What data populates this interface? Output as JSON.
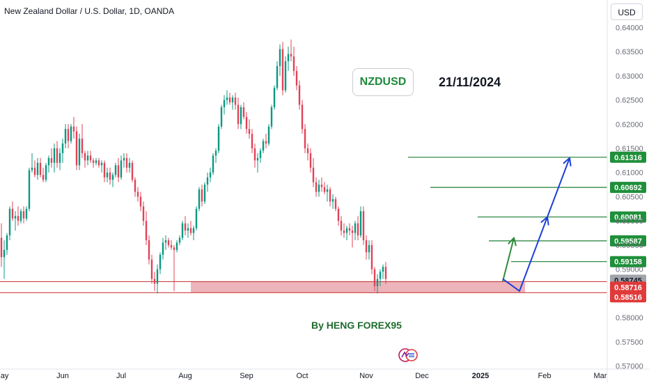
{
  "header": {
    "title": "New Zealand Dollar / U.S. Dollar, 1D, OANDA",
    "currency_button": "USD"
  },
  "annotations": {
    "symbol": "NZDUSD",
    "date": "21/11/2024",
    "author": "By HENG FOREX95"
  },
  "colors": {
    "bull": "#089981",
    "bear": "#e04257",
    "target_line": "#1e7e34",
    "zone_fill": "#e8a2aa",
    "zone_line": "#c62828",
    "blue_arrow": "#1a3fd6",
    "green_arrow": "#2e8b3a",
    "price_tag_green": "#1f8f3a",
    "price_tag_red": "#e03a3a",
    "price_tag_gray": "#a0a4ab"
  },
  "chart_data": {
    "type": "candlestick",
    "title": "New Zealand Dollar / U.S. Dollar, 1D, OANDA",
    "symbol": "NZDUSD",
    "xlabel": "",
    "ylabel": "",
    "ylim": [
      0.5685,
      0.6425
    ],
    "y_ticks": [
      "0.64000",
      "0.63500",
      "0.63000",
      "0.62500",
      "0.62000",
      "0.61500",
      "0.61000",
      "0.60500",
      "0.60000",
      "0.59500",
      "0.59000",
      "0.58500",
      "0.58000",
      "0.57500",
      "0.57000"
    ],
    "x_ticks": [
      {
        "label": "May",
        "index": 0
      },
      {
        "label": "Jun",
        "index": 22
      },
      {
        "label": "Jul",
        "index": 43
      },
      {
        "label": "Aug",
        "index": 66
      },
      {
        "label": "Sep",
        "index": 88
      },
      {
        "label": "Oct",
        "index": 108
      },
      {
        "label": "Nov",
        "index": 131
      },
      {
        "label": "Dec",
        "index": 151
      },
      {
        "label": "2025",
        "index": 172
      },
      {
        "label": "Feb",
        "index": 195
      },
      {
        "label": "Mar",
        "index": 215
      }
    ],
    "x_total_slots": 218,
    "candles": [
      {
        "o": 0.5965,
        "h": 0.5995,
        "l": 0.5905,
        "c": 0.5925
      },
      {
        "o": 0.5925,
        "h": 0.596,
        "l": 0.588,
        "c": 0.594
      },
      {
        "o": 0.594,
        "h": 0.5975,
        "l": 0.593,
        "c": 0.597
      },
      {
        "o": 0.597,
        "h": 0.603,
        "l": 0.596,
        "c": 0.6025
      },
      {
        "o": 0.6025,
        "h": 0.604,
        "l": 0.6,
        "c": 0.6005
      },
      {
        "o": 0.6005,
        "h": 0.602,
        "l": 0.598,
        "c": 0.601
      },
      {
        "o": 0.601,
        "h": 0.603,
        "l": 0.599,
        "c": 0.6
      },
      {
        "o": 0.6,
        "h": 0.6025,
        "l": 0.5995,
        "c": 0.602
      },
      {
        "o": 0.602,
        "h": 0.603,
        "l": 0.5995,
        "c": 0.6005
      },
      {
        "o": 0.6005,
        "h": 0.603,
        "l": 0.6,
        "c": 0.6025
      },
      {
        "o": 0.6025,
        "h": 0.611,
        "l": 0.602,
        "c": 0.6105
      },
      {
        "o": 0.6105,
        "h": 0.614,
        "l": 0.61,
        "c": 0.611
      },
      {
        "o": 0.611,
        "h": 0.6125,
        "l": 0.609,
        "c": 0.6095
      },
      {
        "o": 0.6095,
        "h": 0.613,
        "l": 0.6085,
        "c": 0.612
      },
      {
        "o": 0.612,
        "h": 0.613,
        "l": 0.609,
        "c": 0.6095
      },
      {
        "o": 0.6095,
        "h": 0.611,
        "l": 0.608,
        "c": 0.6085
      },
      {
        "o": 0.6085,
        "h": 0.612,
        "l": 0.608,
        "c": 0.6115
      },
      {
        "o": 0.6115,
        "h": 0.6135,
        "l": 0.61,
        "c": 0.613
      },
      {
        "o": 0.613,
        "h": 0.615,
        "l": 0.611,
        "c": 0.612
      },
      {
        "o": 0.612,
        "h": 0.616,
        "l": 0.61,
        "c": 0.615
      },
      {
        "o": 0.615,
        "h": 0.6165,
        "l": 0.611,
        "c": 0.612
      },
      {
        "o": 0.612,
        "h": 0.615,
        "l": 0.6105,
        "c": 0.614
      },
      {
        "o": 0.614,
        "h": 0.617,
        "l": 0.612,
        "c": 0.616
      },
      {
        "o": 0.616,
        "h": 0.62,
        "l": 0.615,
        "c": 0.619
      },
      {
        "o": 0.619,
        "h": 0.62,
        "l": 0.615,
        "c": 0.6165
      },
      {
        "o": 0.6165,
        "h": 0.62,
        "l": 0.616,
        "c": 0.6195
      },
      {
        "o": 0.6195,
        "h": 0.6215,
        "l": 0.617,
        "c": 0.6185
      },
      {
        "o": 0.6185,
        "h": 0.6195,
        "l": 0.6105,
        "c": 0.6115
      },
      {
        "o": 0.6115,
        "h": 0.618,
        "l": 0.6105,
        "c": 0.617
      },
      {
        "o": 0.617,
        "h": 0.62,
        "l": 0.613,
        "c": 0.614
      },
      {
        "o": 0.614,
        "h": 0.6145,
        "l": 0.611,
        "c": 0.6125
      },
      {
        "o": 0.6125,
        "h": 0.6145,
        "l": 0.6115,
        "c": 0.6135
      },
      {
        "o": 0.6135,
        "h": 0.6145,
        "l": 0.612,
        "c": 0.6125
      },
      {
        "o": 0.6125,
        "h": 0.613,
        "l": 0.611,
        "c": 0.612
      },
      {
        "o": 0.612,
        "h": 0.613,
        "l": 0.6115,
        "c": 0.6125
      },
      {
        "o": 0.6125,
        "h": 0.613,
        "l": 0.611,
        "c": 0.6115
      },
      {
        "o": 0.6115,
        "h": 0.6125,
        "l": 0.61,
        "c": 0.612
      },
      {
        "o": 0.612,
        "h": 0.6125,
        "l": 0.608,
        "c": 0.609
      },
      {
        "o": 0.609,
        "h": 0.611,
        "l": 0.608,
        "c": 0.61
      },
      {
        "o": 0.61,
        "h": 0.611,
        "l": 0.6075,
        "c": 0.6085
      },
      {
        "o": 0.6085,
        "h": 0.61,
        "l": 0.607,
        "c": 0.6095
      },
      {
        "o": 0.6095,
        "h": 0.612,
        "l": 0.609,
        "c": 0.6115
      },
      {
        "o": 0.6115,
        "h": 0.613,
        "l": 0.608,
        "c": 0.609
      },
      {
        "o": 0.609,
        "h": 0.6135,
        "l": 0.6085,
        "c": 0.6125
      },
      {
        "o": 0.6125,
        "h": 0.614,
        "l": 0.611,
        "c": 0.613
      },
      {
        "o": 0.613,
        "h": 0.614,
        "l": 0.61,
        "c": 0.611
      },
      {
        "o": 0.611,
        "h": 0.613,
        "l": 0.61,
        "c": 0.612
      },
      {
        "o": 0.612,
        "h": 0.6125,
        "l": 0.608,
        "c": 0.6085
      },
      {
        "o": 0.6085,
        "h": 0.609,
        "l": 0.605,
        "c": 0.606
      },
      {
        "o": 0.606,
        "h": 0.607,
        "l": 0.604,
        "c": 0.605
      },
      {
        "o": 0.605,
        "h": 0.606,
        "l": 0.602,
        "c": 0.603
      },
      {
        "o": 0.603,
        "h": 0.604,
        "l": 0.599,
        "c": 0.6
      },
      {
        "o": 0.6,
        "h": 0.602,
        "l": 0.595,
        "c": 0.596
      },
      {
        "o": 0.596,
        "h": 0.597,
        "l": 0.591,
        "c": 0.592
      },
      {
        "o": 0.592,
        "h": 0.593,
        "l": 0.587,
        "c": 0.588
      },
      {
        "o": 0.588,
        "h": 0.5895,
        "l": 0.5855,
        "c": 0.587
      },
      {
        "o": 0.587,
        "h": 0.591,
        "l": 0.585,
        "c": 0.59
      },
      {
        "o": 0.59,
        "h": 0.5935,
        "l": 0.589,
        "c": 0.593
      },
      {
        "o": 0.593,
        "h": 0.5965,
        "l": 0.592,
        "c": 0.5955
      },
      {
        "o": 0.5955,
        "h": 0.597,
        "l": 0.594,
        "c": 0.596
      },
      {
        "o": 0.596,
        "h": 0.5965,
        "l": 0.5945,
        "c": 0.595
      },
      {
        "o": 0.595,
        "h": 0.596,
        "l": 0.594,
        "c": 0.5945
      },
      {
        "o": 0.5945,
        "h": 0.595,
        "l": 0.5855,
        "c": 0.594
      },
      {
        "o": 0.594,
        "h": 0.596,
        "l": 0.5935,
        "c": 0.5955
      },
      {
        "o": 0.5955,
        "h": 0.597,
        "l": 0.595,
        "c": 0.5965
      },
      {
        "o": 0.5965,
        "h": 0.6,
        "l": 0.596,
        "c": 0.5995
      },
      {
        "o": 0.5995,
        "h": 0.601,
        "l": 0.597,
        "c": 0.598
      },
      {
        "o": 0.598,
        "h": 0.5995,
        "l": 0.5965,
        "c": 0.5985
      },
      {
        "o": 0.5985,
        "h": 0.6,
        "l": 0.597,
        "c": 0.5975
      },
      {
        "o": 0.5975,
        "h": 0.599,
        "l": 0.596,
        "c": 0.5985
      },
      {
        "o": 0.5985,
        "h": 0.603,
        "l": 0.598,
        "c": 0.6025
      },
      {
        "o": 0.6025,
        "h": 0.607,
        "l": 0.602,
        "c": 0.6065
      },
      {
        "o": 0.6065,
        "h": 0.6075,
        "l": 0.603,
        "c": 0.604
      },
      {
        "o": 0.604,
        "h": 0.608,
        "l": 0.6035,
        "c": 0.6075
      },
      {
        "o": 0.6075,
        "h": 0.61,
        "l": 0.606,
        "c": 0.609
      },
      {
        "o": 0.609,
        "h": 0.611,
        "l": 0.608,
        "c": 0.61
      },
      {
        "o": 0.61,
        "h": 0.614,
        "l": 0.6095,
        "c": 0.6135
      },
      {
        "o": 0.6135,
        "h": 0.615,
        "l": 0.612,
        "c": 0.6145
      },
      {
        "o": 0.6145,
        "h": 0.62,
        "l": 0.614,
        "c": 0.6195
      },
      {
        "o": 0.6195,
        "h": 0.624,
        "l": 0.619,
        "c": 0.6235
      },
      {
        "o": 0.6235,
        "h": 0.626,
        "l": 0.622,
        "c": 0.625
      },
      {
        "o": 0.625,
        "h": 0.627,
        "l": 0.624,
        "c": 0.6255
      },
      {
        "o": 0.6255,
        "h": 0.6265,
        "l": 0.624,
        "c": 0.6245
      },
      {
        "o": 0.6245,
        "h": 0.626,
        "l": 0.623,
        "c": 0.6255
      },
      {
        "o": 0.6255,
        "h": 0.6265,
        "l": 0.623,
        "c": 0.624
      },
      {
        "o": 0.624,
        "h": 0.6255,
        "l": 0.619,
        "c": 0.62
      },
      {
        "o": 0.62,
        "h": 0.624,
        "l": 0.619,
        "c": 0.6235
      },
      {
        "o": 0.6235,
        "h": 0.6245,
        "l": 0.621,
        "c": 0.6215
      },
      {
        "o": 0.6215,
        "h": 0.6225,
        "l": 0.618,
        "c": 0.619
      },
      {
        "o": 0.619,
        "h": 0.621,
        "l": 0.617,
        "c": 0.618
      },
      {
        "o": 0.618,
        "h": 0.619,
        "l": 0.614,
        "c": 0.615
      },
      {
        "o": 0.615,
        "h": 0.616,
        "l": 0.611,
        "c": 0.6125
      },
      {
        "o": 0.6125,
        "h": 0.614,
        "l": 0.61,
        "c": 0.613
      },
      {
        "o": 0.613,
        "h": 0.615,
        "l": 0.612,
        "c": 0.6145
      },
      {
        "o": 0.6145,
        "h": 0.617,
        "l": 0.614,
        "c": 0.6165
      },
      {
        "o": 0.6165,
        "h": 0.618,
        "l": 0.615,
        "c": 0.616
      },
      {
        "o": 0.616,
        "h": 0.62,
        "l": 0.6155,
        "c": 0.6195
      },
      {
        "o": 0.6195,
        "h": 0.624,
        "l": 0.619,
        "c": 0.6235
      },
      {
        "o": 0.6235,
        "h": 0.628,
        "l": 0.623,
        "c": 0.6275
      },
      {
        "o": 0.6275,
        "h": 0.633,
        "l": 0.627,
        "c": 0.632
      },
      {
        "o": 0.632,
        "h": 0.6365,
        "l": 0.63,
        "c": 0.6355
      },
      {
        "o": 0.6355,
        "h": 0.637,
        "l": 0.626,
        "c": 0.627
      },
      {
        "o": 0.627,
        "h": 0.634,
        "l": 0.6265,
        "c": 0.633
      },
      {
        "o": 0.633,
        "h": 0.636,
        "l": 0.631,
        "c": 0.6345
      },
      {
        "o": 0.6345,
        "h": 0.6375,
        "l": 0.633,
        "c": 0.634
      },
      {
        "o": 0.634,
        "h": 0.636,
        "l": 0.63,
        "c": 0.631
      },
      {
        "o": 0.631,
        "h": 0.632,
        "l": 0.627,
        "c": 0.628
      },
      {
        "o": 0.628,
        "h": 0.629,
        "l": 0.623,
        "c": 0.624
      },
      {
        "o": 0.624,
        "h": 0.625,
        "l": 0.618,
        "c": 0.619
      },
      {
        "o": 0.619,
        "h": 0.62,
        "l": 0.614,
        "c": 0.615
      },
      {
        "o": 0.615,
        "h": 0.616,
        "l": 0.6125,
        "c": 0.614
      },
      {
        "o": 0.614,
        "h": 0.615,
        "l": 0.61,
        "c": 0.611
      },
      {
        "o": 0.611,
        "h": 0.613,
        "l": 0.607,
        "c": 0.608
      },
      {
        "o": 0.608,
        "h": 0.609,
        "l": 0.605,
        "c": 0.606
      },
      {
        "o": 0.606,
        "h": 0.6085,
        "l": 0.605,
        "c": 0.6075
      },
      {
        "o": 0.6075,
        "h": 0.609,
        "l": 0.606,
        "c": 0.607
      },
      {
        "o": 0.607,
        "h": 0.608,
        "l": 0.6055,
        "c": 0.606
      },
      {
        "o": 0.606,
        "h": 0.6075,
        "l": 0.604,
        "c": 0.6065
      },
      {
        "o": 0.6065,
        "h": 0.607,
        "l": 0.603,
        "c": 0.604
      },
      {
        "o": 0.604,
        "h": 0.6055,
        "l": 0.6025,
        "c": 0.6045
      },
      {
        "o": 0.6045,
        "h": 0.605,
        "l": 0.602,
        "c": 0.6025
      },
      {
        "o": 0.6025,
        "h": 0.603,
        "l": 0.599,
        "c": 0.6
      },
      {
        "o": 0.6,
        "h": 0.601,
        "l": 0.597,
        "c": 0.598
      },
      {
        "o": 0.598,
        "h": 0.5995,
        "l": 0.5965,
        "c": 0.5975
      },
      {
        "o": 0.5975,
        "h": 0.599,
        "l": 0.596,
        "c": 0.5985
      },
      {
        "o": 0.5985,
        "h": 0.5995,
        "l": 0.597,
        "c": 0.598
      },
      {
        "o": 0.598,
        "h": 0.599,
        "l": 0.5945,
        "c": 0.5975
      },
      {
        "o": 0.5975,
        "h": 0.6,
        "l": 0.596,
        "c": 0.5995
      },
      {
        "o": 0.5995,
        "h": 0.601,
        "l": 0.596,
        "c": 0.597
      },
      {
        "o": 0.597,
        "h": 0.603,
        "l": 0.5965,
        "c": 0.602
      },
      {
        "o": 0.602,
        "h": 0.603,
        "l": 0.595,
        "c": 0.596
      },
      {
        "o": 0.596,
        "h": 0.597,
        "l": 0.592,
        "c": 0.5935
      },
      {
        "o": 0.5935,
        "h": 0.596,
        "l": 0.592,
        "c": 0.595
      },
      {
        "o": 0.595,
        "h": 0.596,
        "l": 0.589,
        "c": 0.59
      },
      {
        "o": 0.59,
        "h": 0.5905,
        "l": 0.5855,
        "c": 0.5865
      },
      {
        "o": 0.5865,
        "h": 0.589,
        "l": 0.585,
        "c": 0.588
      },
      {
        "o": 0.588,
        "h": 0.59,
        "l": 0.5865,
        "c": 0.5895
      },
      {
        "o": 0.5895,
        "h": 0.591,
        "l": 0.588,
        "c": 0.5905
      },
      {
        "o": 0.5905,
        "h": 0.5915,
        "l": 0.587,
        "c": 0.588
      }
    ],
    "horizontal_levels": [
      {
        "name": "target-4",
        "value": 0.61316,
        "label": "0.61316",
        "start_index": 146
      },
      {
        "name": "target-3",
        "value": 0.60692,
        "label": "0.60692",
        "start_index": 154
      },
      {
        "name": "target-2",
        "value": 0.60081,
        "label": "0.60081",
        "start_index": 171
      },
      {
        "name": "target-1",
        "value": 0.59587,
        "label": "0.59587",
        "start_index": 175
      },
      {
        "name": "target-0",
        "value": 0.59158,
        "label": "0.59158",
        "start_index": 183
      }
    ],
    "support_zone": {
      "low": 0.58516,
      "high": 0.58745,
      "start_index": 68,
      "end_index": 188
    },
    "price_tags": [
      {
        "value": 0.58745,
        "label": "0.58745",
        "style": "gray"
      },
      {
        "value": 0.58716,
        "label": "0.58716",
        "style": "red"
      },
      {
        "value": 0.58516,
        "label": "0.58516",
        "style": "red"
      }
    ],
    "projections": [
      {
        "name": "green-arrow",
        "color": "green_arrow",
        "points": [
          [
            180,
            0.5875
          ],
          [
            184,
            0.5965
          ]
        ]
      },
      {
        "name": "blue-arrow",
        "color": "blue_arrow",
        "points": [
          [
            180,
            0.588
          ],
          [
            186,
            0.5855
          ],
          [
            196,
            0.6008
          ],
          [
            204,
            0.613
          ]
        ]
      }
    ]
  }
}
